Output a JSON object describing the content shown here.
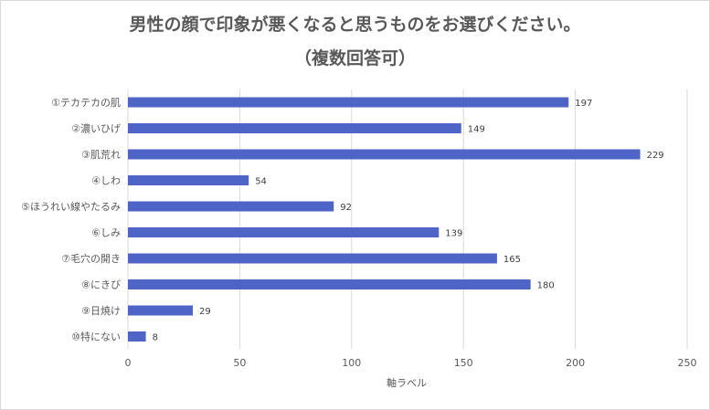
{
  "chart_data": {
    "type": "bar",
    "orientation": "horizontal",
    "title": "男性の顔で印象が悪くなると思うものをお選びください。",
    "subtitle": "（複数回答可）",
    "xlabel": "軸ラベル",
    "ylabel": "",
    "xlim": [
      0,
      250
    ],
    "xticks": [
      0,
      50,
      100,
      150,
      200,
      250
    ],
    "grid": true,
    "legend": "none",
    "bar_color": "#4f64c7",
    "categories": [
      "①テカテカの肌",
      "②濃いひげ",
      "③肌荒れ",
      "④しわ",
      "⑤ほうれい線やたるみ",
      "⑥しみ",
      "⑦毛穴の開き",
      "⑧にきび",
      "⑨日焼け",
      "⑩特にない"
    ],
    "values": [
      197,
      149,
      229,
      54,
      92,
      139,
      165,
      180,
      29,
      8
    ],
    "data_labels": true
  }
}
